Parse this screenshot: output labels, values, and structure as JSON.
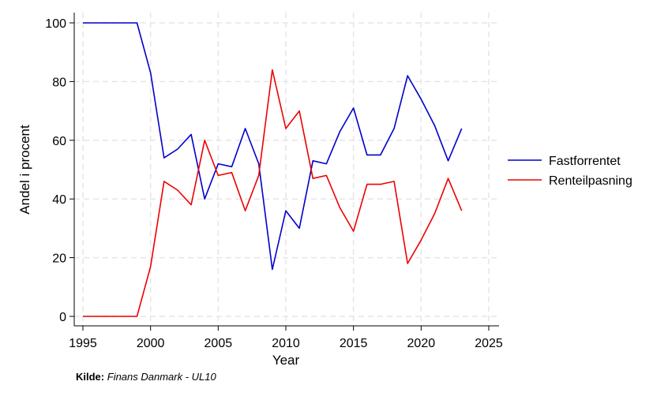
{
  "chart_data": {
    "type": "line",
    "xlabel": "Year",
    "ylabel": "Andel i procent",
    "xlim": [
      1994.5,
      2025.5
    ],
    "ylim": [
      -3,
      103
    ],
    "xticks": [
      1995,
      2000,
      2005,
      2010,
      2015,
      2020,
      2025
    ],
    "yticks": [
      0,
      20,
      40,
      60,
      80,
      100
    ],
    "grid": true,
    "legend_position": "right",
    "x": [
      1995,
      1996,
      1997,
      1998,
      1999,
      2000,
      2001,
      2002,
      2003,
      2004,
      2005,
      2006,
      2007,
      2008,
      2009,
      2010,
      2011,
      2012,
      2013,
      2014,
      2015,
      2016,
      2017,
      2018,
      2019,
      2020,
      2021,
      2022,
      2023
    ],
    "series": [
      {
        "name": "Fastforrentet",
        "color": "#0000cc",
        "values": [
          100,
          100,
          100,
          100,
          100,
          83,
          54,
          57,
          62,
          40,
          52,
          51,
          64,
          52,
          16,
          36,
          30,
          53,
          52,
          63,
          71,
          55,
          55,
          64,
          82,
          74,
          65,
          53,
          64
        ]
      },
      {
        "name": "Renteilpasning",
        "color": "#ee0000",
        "values": [
          0,
          0,
          0,
          0,
          0,
          17,
          46,
          43,
          38,
          60,
          48,
          49,
          36,
          48,
          84,
          64,
          70,
          47,
          48,
          37,
          29,
          45,
          45,
          46,
          18,
          26,
          35,
          47,
          36
        ]
      }
    ]
  },
  "source": {
    "label": "Kilde:",
    "text": "Finans Danmark - UL10"
  }
}
